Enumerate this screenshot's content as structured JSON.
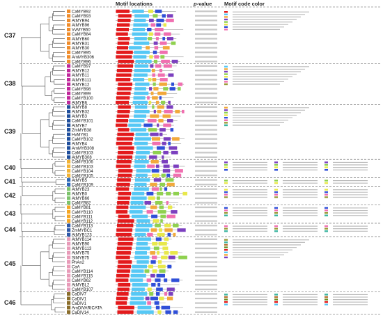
{
  "headers": {
    "motif_locations": "Motif locations",
    "p_value_prefix": "p",
    "p_value_suffix": "-value",
    "motif_code_color": "Motif code color"
  },
  "clades": [
    {
      "label": "C37",
      "first": 0,
      "last": 11
    },
    {
      "label": "C38",
      "first": 12,
      "last": 20
    },
    {
      "label": "C39",
      "first": 21,
      "last": 32
    },
    {
      "label": "C40",
      "first": 33,
      "last": 36
    },
    {
      "label": "C41",
      "first": 37,
      "last": 38
    },
    {
      "label": "C42",
      "first": 39,
      "last": 42
    },
    {
      "label": "C43",
      "first": 43,
      "last": 46
    },
    {
      "label": "C44",
      "first": 47,
      "last": 49
    },
    {
      "label": "C45",
      "first": 50,
      "last": 61
    },
    {
      "label": "C46",
      "first": 62,
      "last": 66
    }
  ],
  "genes": [
    {
      "name": "CaMYB92",
      "color": "#f08c2a"
    },
    {
      "name": "CaMYB93",
      "color": "#f08c2a"
    },
    {
      "name": "AtMYB94",
      "color": "#f08c2a"
    },
    {
      "name": "AtMYB96",
      "color": "#f08c2a"
    },
    {
      "name": "VvMYB60",
      "color": "#f08c2a"
    },
    {
      "name": "CaMYB84",
      "color": "#f08c2a"
    },
    {
      "name": "AtMYB60",
      "color": "#f08c2a"
    },
    {
      "name": "AtMYB31",
      "color": "#f08c2a"
    },
    {
      "name": "AtMYB30",
      "color": "#f08c2a"
    },
    {
      "name": "CaMYB95",
      "color": "#f08c2a"
    },
    {
      "name": "AmMYB306",
      "color": "#f08c2a"
    },
    {
      "name": "CaMYB96",
      "color": "#f08c2a"
    },
    {
      "name": "CaMYB97",
      "color": "#c0279b"
    },
    {
      "name": "AtMYB12",
      "color": "#c0279b"
    },
    {
      "name": "AtMYB11",
      "color": "#c0279b"
    },
    {
      "name": "AtMYB111",
      "color": "#c0279b"
    },
    {
      "name": "AtMYB12",
      "color": "#c0279b"
    },
    {
      "name": "CaMYB98",
      "color": "#c0279b"
    },
    {
      "name": "CaMYB99",
      "color": "#c0279b"
    },
    {
      "name": "CaMYB100",
      "color": "#c0279b"
    },
    {
      "name": "AtMYB6",
      "color": "#c0279b"
    },
    {
      "name": "AtMYB8",
      "color": "#1f4e9c"
    },
    {
      "name": "AtMYB32",
      "color": "#1f4e9c"
    },
    {
      "name": "AtMYB3",
      "color": "#1f4e9c"
    },
    {
      "name": "CaMYB101",
      "color": "#1f4e9c"
    },
    {
      "name": "AtMYB7",
      "color": "#1f4e9c"
    },
    {
      "name": "ZmMYB38",
      "color": "#1f4e9c"
    },
    {
      "name": "HvMYB1",
      "color": "#1f4e9c"
    },
    {
      "name": "CaMYB102",
      "color": "#1f4e9c"
    },
    {
      "name": "AtMYB4",
      "color": "#1f4e9c"
    },
    {
      "name": "AmMYB308",
      "color": "#1f4e9c"
    },
    {
      "name": "CaMYB103",
      "color": "#1f4e9c"
    },
    {
      "name": "AtMYB308",
      "color": "#1f4e9c"
    },
    {
      "name": "CaMYB106",
      "color": "#f2b233"
    },
    {
      "name": "CaMYB103",
      "color": "#f2b233"
    },
    {
      "name": "CaMYB104",
      "color": "#f2b233"
    },
    {
      "name": "CaMYB105",
      "color": "#f2b233"
    },
    {
      "name": "AtMYB5",
      "color": "#2a66b8"
    },
    {
      "name": "CaMYB109",
      "color": "#2a66b8"
    },
    {
      "name": "AtMYB23",
      "color": "#7cc36b"
    },
    {
      "name": "AtMYB0",
      "color": "#7cc36b"
    },
    {
      "name": "AtMYB66",
      "color": "#7cc36b"
    },
    {
      "name": "CaMYB82",
      "color": "#7cc36b"
    },
    {
      "name": "CaMYB81",
      "color": "#f5a623"
    },
    {
      "name": "CaMYB110",
      "color": "#f5a623"
    },
    {
      "name": "CaMYB111",
      "color": "#f5a623"
    },
    {
      "name": "CaMYB112",
      "color": "#f5a623"
    },
    {
      "name": "CaMYB113",
      "color": "#2e58a8"
    },
    {
      "name": "ZmMYBC1",
      "color": "#2e58a8"
    },
    {
      "name": "AtMYB123",
      "color": "#2e58a8"
    },
    {
      "name": "AtMYB114",
      "color": "#e89ab8"
    },
    {
      "name": "AtMYB90",
      "color": "#e89ab8"
    },
    {
      "name": "AtMYB113",
      "color": "#e89ab8"
    },
    {
      "name": "AtMYB75",
      "color": "#e89ab8"
    },
    {
      "name": "SlMYB75",
      "color": "#e89ab8"
    },
    {
      "name": "PhAn2",
      "color": "#e89ab8"
    },
    {
      "name": "CaA",
      "color": "#e89ab8"
    },
    {
      "name": "CaMYB114",
      "color": "#e89ab8"
    },
    {
      "name": "CaMYB115",
      "color": "#e89ab8"
    },
    {
      "name": "CaMYB62",
      "color": "#e89ab8"
    },
    {
      "name": "AtMYBL2",
      "color": "#e89ab8"
    },
    {
      "name": "CaMYB107",
      "color": "#e89ab8"
    },
    {
      "name": "CaDIV7",
      "color": "#8a6d2b"
    },
    {
      "name": "CaDIV1",
      "color": "#8a6d2b"
    },
    {
      "name": "CaDIV1",
      "color": "#8a6d2b"
    },
    {
      "name": "AmDIVARICATA",
      "color": "#8a6d2b"
    },
    {
      "name": "CaDIV14",
      "color": "#8a6d2b"
    }
  ],
  "motif_colors": [
    "#e31a1c",
    "#56c8f5",
    "#f2a93b",
    "#7b3fbf",
    "#8fd14f",
    "#e8e84a",
    "#2f4fd8",
    "#f06fb0",
    "#9b9b3a",
    "#3cb4a0",
    "#b87333",
    "#6b8e23"
  ]
}
